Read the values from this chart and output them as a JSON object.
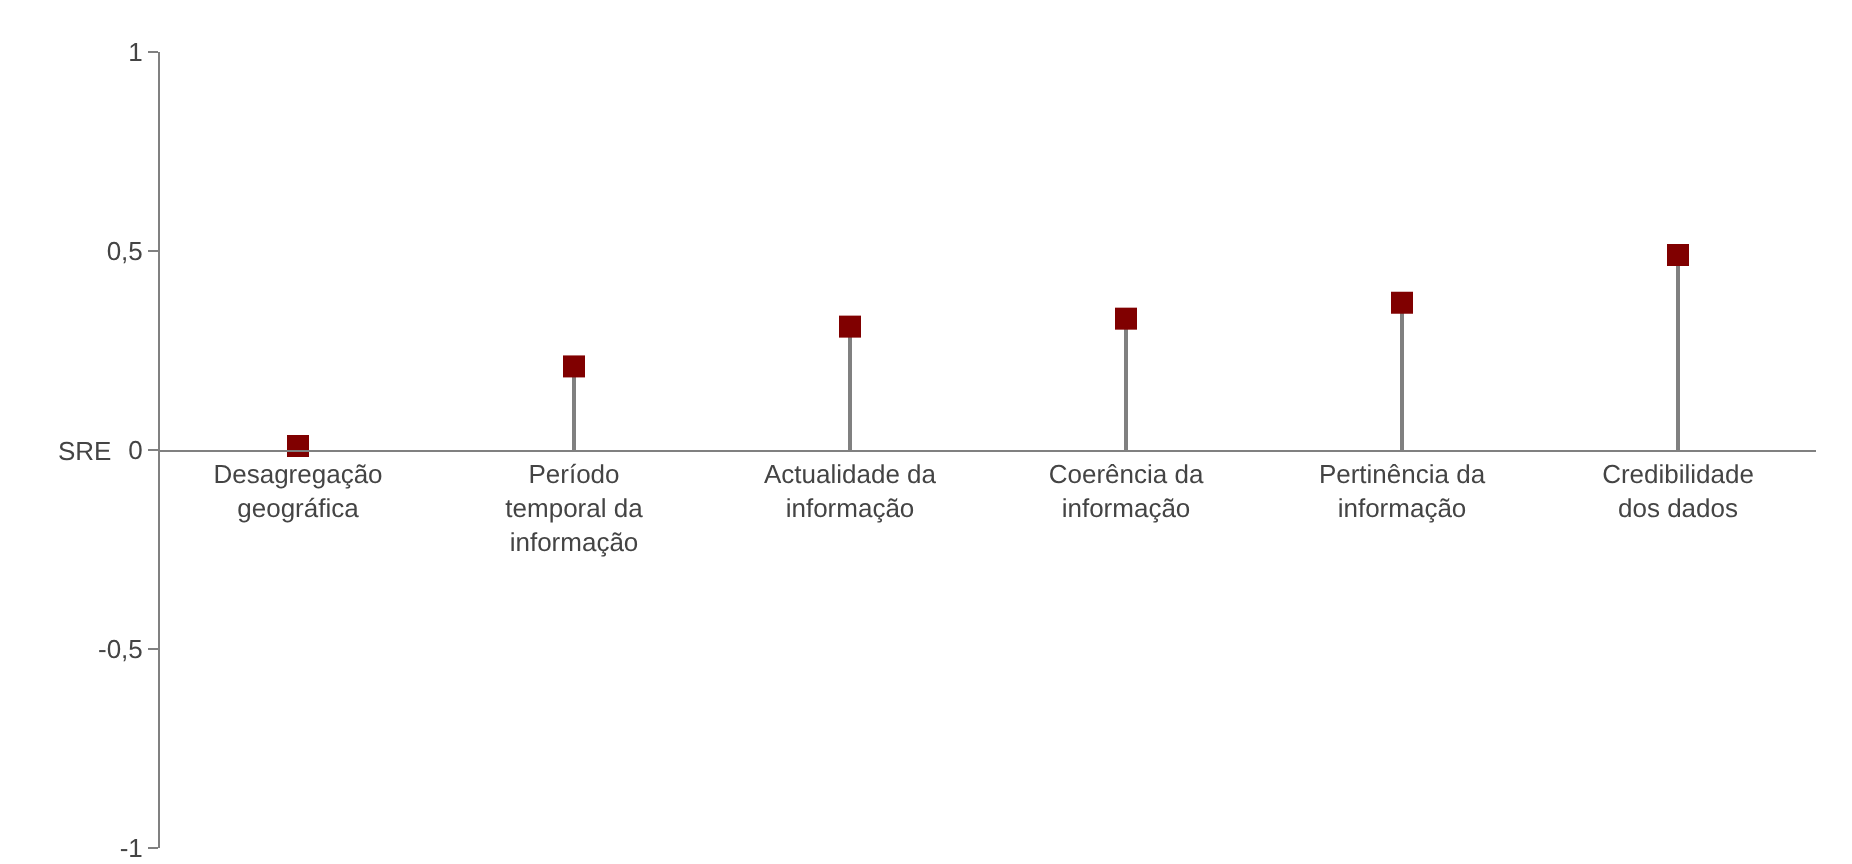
{
  "chart_data": {
    "type": "lollipop",
    "categories": [
      "Desagregação geográfica",
      "Período temporal da informação",
      "Actualidade da informação",
      "Coerência da informação",
      "Pertinência da informação",
      "Credibilidade dos dados"
    ],
    "values": [
      0.01,
      0.21,
      0.31,
      0.33,
      0.37,
      0.49
    ],
    "color": "#800000",
    "marker": "square",
    "grid": false,
    "ylim": [
      -1,
      1
    ],
    "yticks": [
      -1,
      {
        "value": -0.5,
        "label": "-0,5"
      },
      0,
      {
        "value": 0.5,
        "label": "0,5"
      },
      1
    ],
    "annotations": [
      "SRE"
    ]
  }
}
